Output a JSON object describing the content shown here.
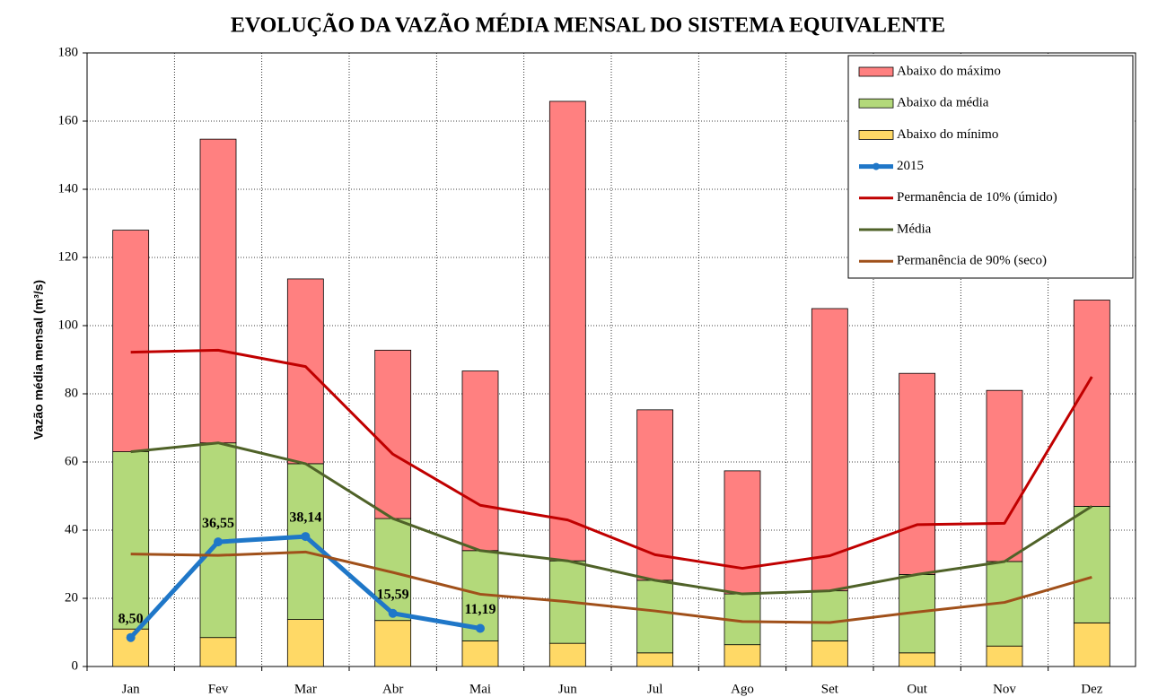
{
  "chart_data": {
    "type": "bar",
    "title": "EVOLUÇÃO DA VAZÃO MÉDIA MENSAL DO SISTEMA EQUIVALENTE",
    "y_label": "Vazão média mensal (m³/s)",
    "categories": [
      "Jan",
      "Fev",
      "Mar",
      "Abr",
      "Mai",
      "Jun",
      "Jul",
      "Ago",
      "Set",
      "Out",
      "Nov",
      "Dez"
    ],
    "ylim": [
      0,
      180
    ],
    "yticks": [
      0,
      20,
      40,
      60,
      80,
      100,
      120,
      140,
      160,
      180
    ],
    "grid": true,
    "legend": "top-right",
    "series": [
      {
        "name": "Abaixo do máximo",
        "type": "bar",
        "color": "#ff8080",
        "values": [
          65,
          89.1,
          54.2,
          49.4,
          52.7,
          134.8,
          50,
          36.1,
          82.8,
          59,
          50.2,
          60.5
        ]
      },
      {
        "name": "Abaixo da média",
        "type": "bar",
        "color": "#b3d97a",
        "values": [
          52,
          57.1,
          45.7,
          29.9,
          26.5,
          24.2,
          21.3,
          14.9,
          14.7,
          23,
          24.8,
          34.2
        ]
      },
      {
        "name": "Abaixo do mínimo",
        "type": "bar",
        "color": "#ffd966",
        "values": [
          11,
          8.5,
          13.8,
          13.5,
          7.5,
          6.8,
          4,
          6.4,
          7.5,
          4,
          6,
          12.8
        ]
      },
      {
        "name": "2015",
        "type": "line",
        "color": "#1f77c8",
        "marker": true,
        "values": [
          8.5,
          36.55,
          38.14,
          15.59,
          11.19,
          null,
          null,
          null,
          null,
          null,
          null,
          null
        ],
        "value_labels": [
          "8,50",
          "36,55",
          "38,14",
          "15,59",
          "11,19",
          null,
          null,
          null,
          null,
          null,
          null,
          null
        ]
      },
      {
        "name": "Permanência de 10% (úmido)",
        "type": "line",
        "color": "#c00000",
        "values": [
          92.2,
          92.8,
          88,
          62.3,
          47.3,
          43,
          32.8,
          28.8,
          32.5,
          41.6,
          42,
          85
        ]
      },
      {
        "name": "Média",
        "type": "line",
        "color": "#4f6228",
        "values": [
          63,
          65.6,
          59.5,
          43.4,
          34,
          31,
          25.3,
          21.3,
          22.2,
          27,
          30.8,
          47
        ]
      },
      {
        "name": "Permanência de 90% (seco)",
        "type": "line",
        "color": "#a0501a",
        "values": [
          33,
          32.6,
          33.6,
          27.6,
          21.2,
          19,
          16.3,
          13.2,
          12.9,
          16,
          18.8,
          26.2
        ]
      }
    ]
  }
}
